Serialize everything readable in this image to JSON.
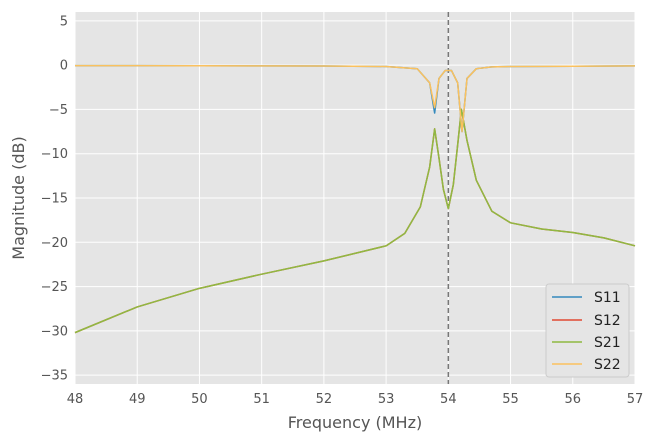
{
  "chart_data": {
    "type": "line",
    "title": "",
    "xlabel": "Frequency (MHz)",
    "ylabel": "Magnitude (dB)",
    "xlim": [
      48,
      57
    ],
    "ylim": [
      -36,
      6
    ],
    "xticks": [
      "48",
      "49",
      "50",
      "51",
      "52",
      "53",
      "54",
      "55",
      "56",
      "57"
    ],
    "yticks": [
      "5",
      "0",
      "−5",
      "−10",
      "−15",
      "−20",
      "−25",
      "−30",
      "−35"
    ],
    "grid": true,
    "legend_position": "bottom-right",
    "vline": {
      "x": 54.0,
      "style": "dashed",
      "color": "#777777"
    },
    "series": [
      {
        "name": "S11",
        "color": "#348ABD",
        "x": [
          48.0,
          49.0,
          50.0,
          51.0,
          52.0,
          53.0,
          53.5,
          53.7,
          53.78,
          53.85,
          53.95,
          54.05,
          54.15,
          54.22,
          54.3,
          54.45,
          54.7,
          55.0,
          56.0,
          57.0
        ],
        "y": [
          -0.05,
          -0.06,
          -0.07,
          -0.08,
          -0.1,
          -0.15,
          -0.4,
          -2.0,
          -5.4,
          -1.5,
          -0.6,
          -0.6,
          -2.0,
          -7.5,
          -1.5,
          -0.4,
          -0.2,
          -0.15,
          -0.12,
          -0.08
        ]
      },
      {
        "name": "S12",
        "color": "#E24A33",
        "x": [
          48.0,
          49.0,
          50.0,
          51.0,
          52.0,
          53.0,
          53.3,
          53.55,
          53.7,
          53.78,
          53.85,
          53.92,
          54.0,
          54.08,
          54.15,
          54.21,
          54.3,
          54.45,
          54.7,
          55.0,
          55.5,
          56.0,
          56.5,
          57.0
        ],
        "y": [
          -30.2,
          -27.3,
          -25.2,
          -23.6,
          -22.1,
          -20.4,
          -19.0,
          -16.0,
          -11.5,
          -7.2,
          -10.5,
          -14.0,
          -16.2,
          -13.5,
          -9.0,
          -5.0,
          -8.5,
          -13.0,
          -16.5,
          -17.8,
          -18.5,
          -18.9,
          -19.5,
          -20.4
        ]
      },
      {
        "name": "S21",
        "color": "#8EBA42",
        "x": [
          48.0,
          49.0,
          50.0,
          51.0,
          52.0,
          53.0,
          53.3,
          53.55,
          53.7,
          53.78,
          53.85,
          53.92,
          54.0,
          54.08,
          54.15,
          54.21,
          54.3,
          54.45,
          54.7,
          55.0,
          55.5,
          56.0,
          56.5,
          57.0
        ],
        "y": [
          -30.2,
          -27.3,
          -25.2,
          -23.6,
          -22.1,
          -20.4,
          -19.0,
          -16.0,
          -11.5,
          -7.2,
          -10.5,
          -14.0,
          -16.2,
          -13.5,
          -9.0,
          -5.0,
          -8.5,
          -13.0,
          -16.5,
          -17.8,
          -18.5,
          -18.9,
          -19.5,
          -20.4
        ]
      },
      {
        "name": "S22",
        "color": "#FBC15E",
        "x": [
          48.0,
          49.0,
          50.0,
          51.0,
          52.0,
          53.0,
          53.5,
          53.7,
          53.78,
          53.85,
          53.95,
          54.05,
          54.15,
          54.22,
          54.3,
          54.45,
          54.7,
          55.0,
          56.0,
          57.0
        ],
        "y": [
          -0.05,
          -0.06,
          -0.07,
          -0.08,
          -0.1,
          -0.15,
          -0.4,
          -2.0,
          -4.8,
          -1.5,
          -0.6,
          -0.6,
          -2.0,
          -7.5,
          -1.5,
          -0.4,
          -0.2,
          -0.15,
          -0.12,
          -0.08
        ]
      }
    ]
  }
}
